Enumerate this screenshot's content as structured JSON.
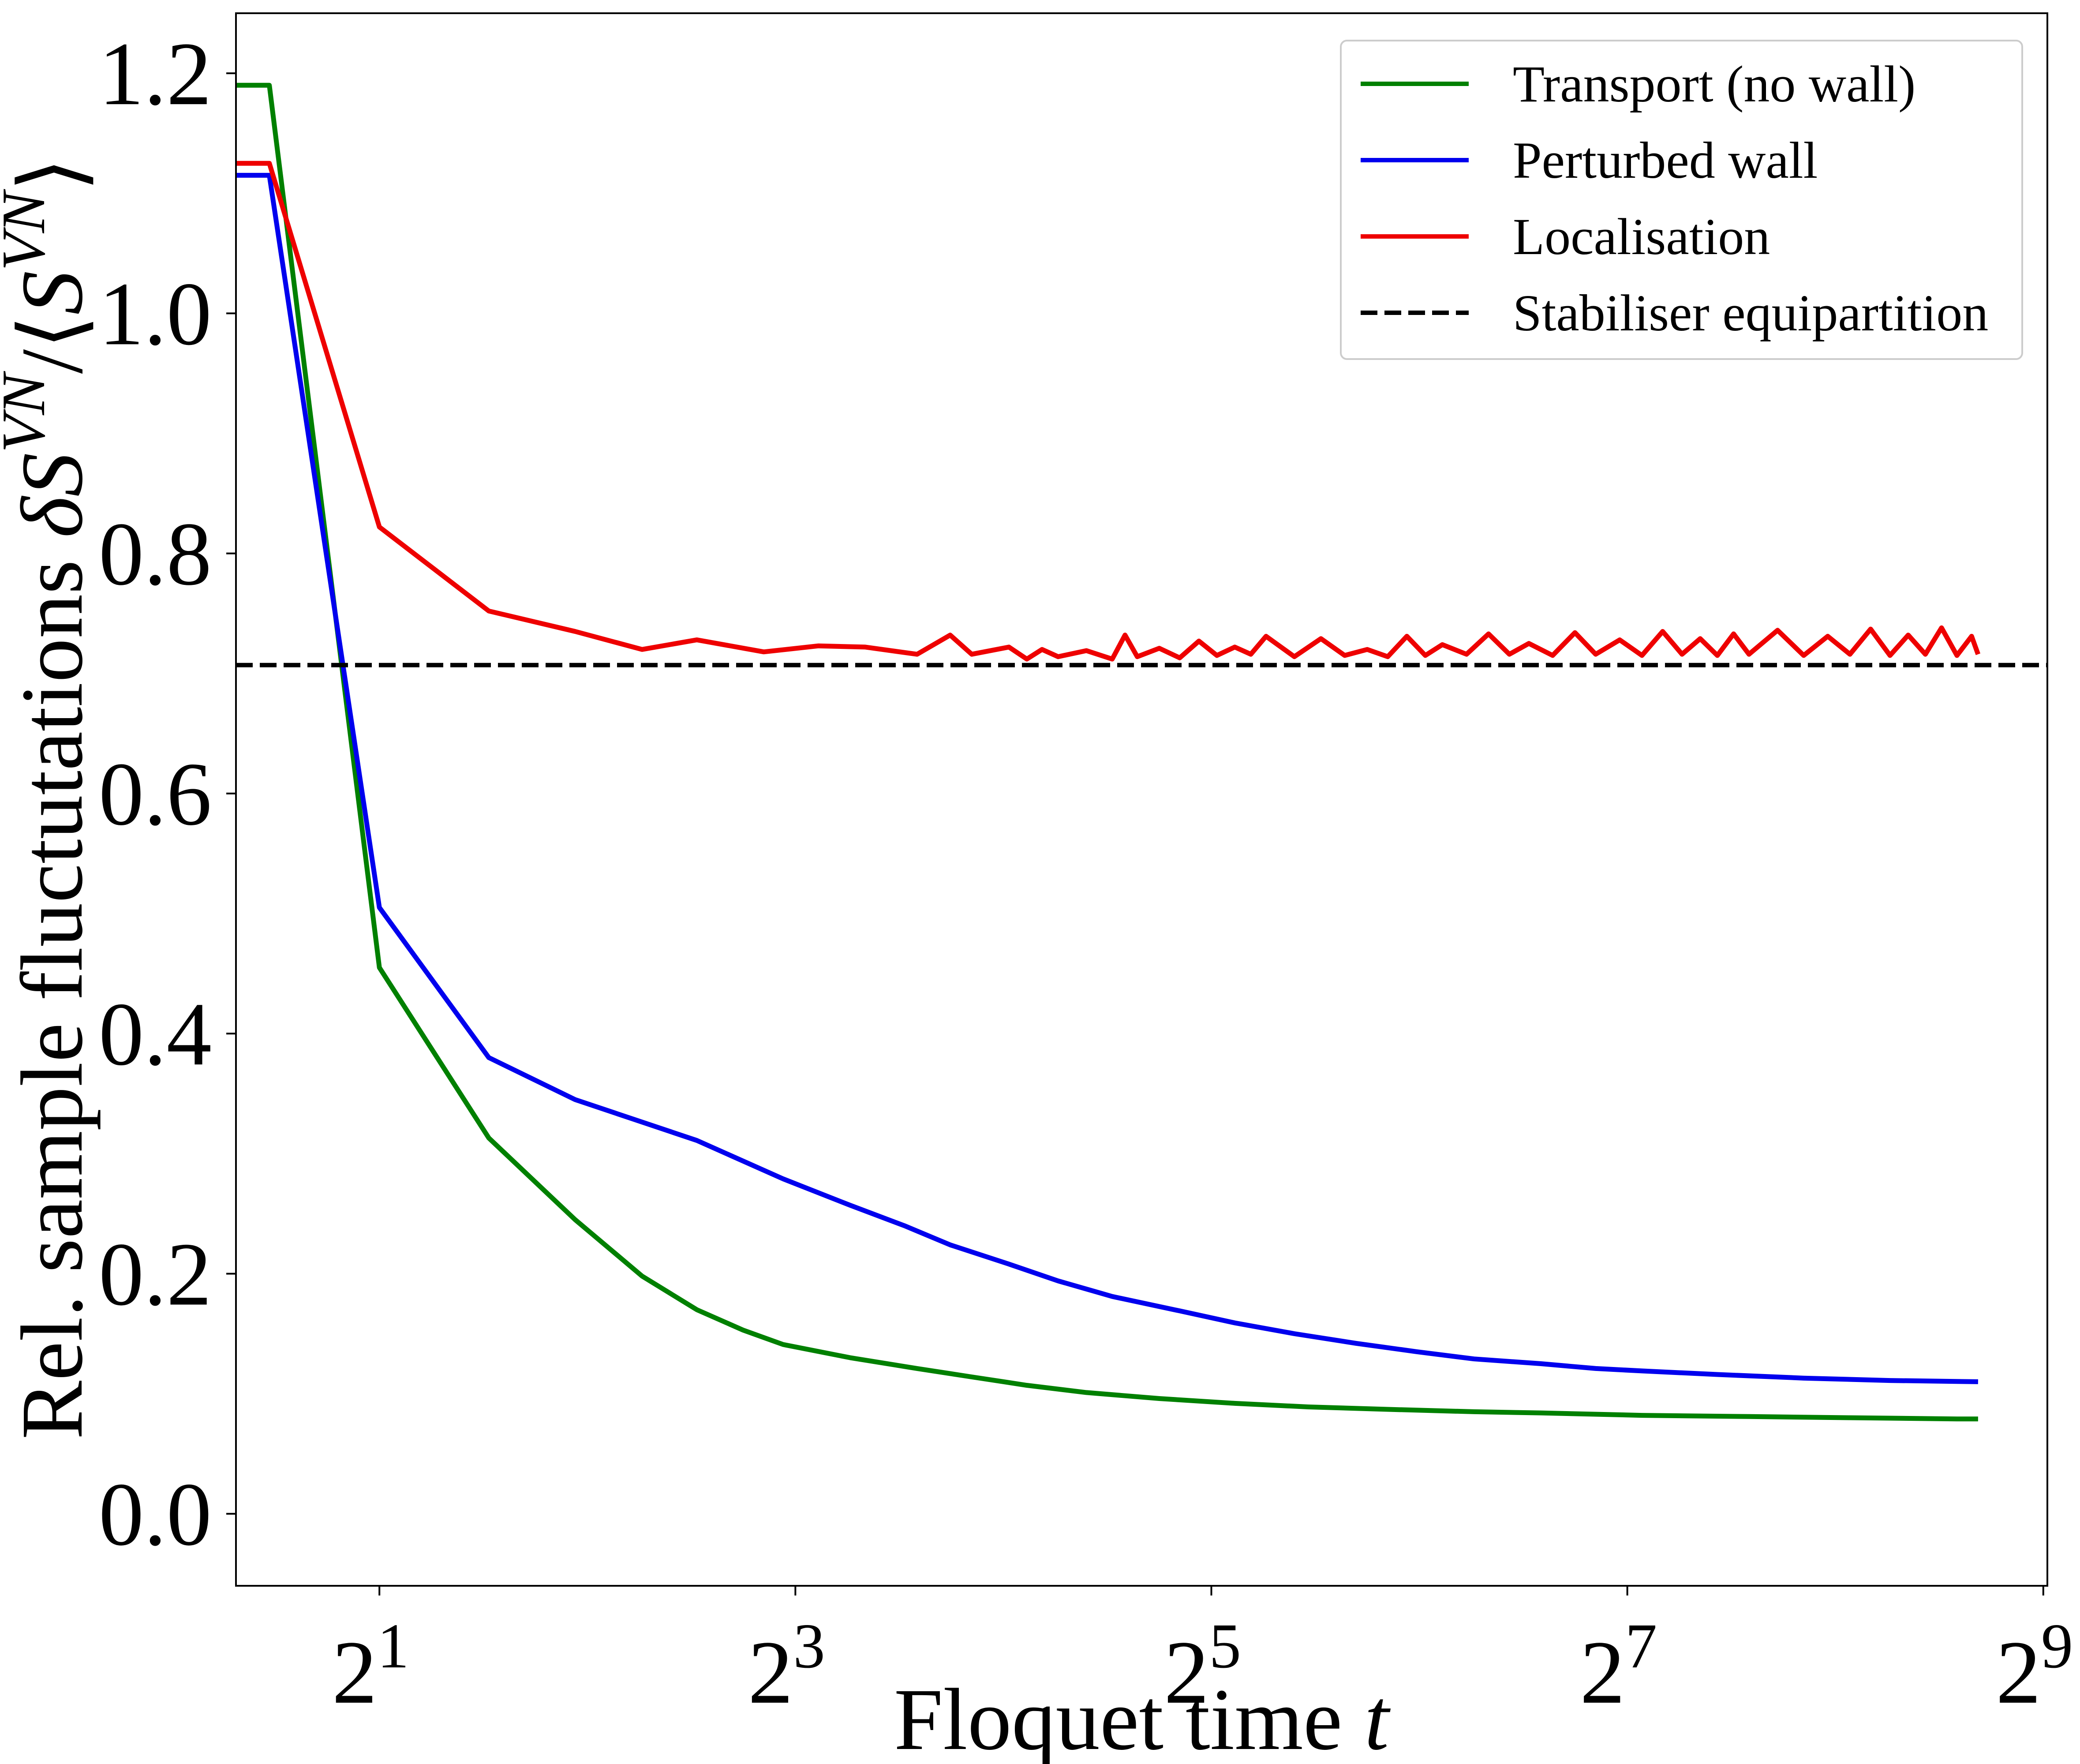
{
  "chart_data": {
    "type": "line",
    "title": "",
    "xlabel": "Floquet time t",
    "ylabel": "Rel. sample fluctutations δS^{VN}/⟨S^{VN}⟩",
    "xscale": "log2",
    "xlim": [
      1.24,
      519
    ],
    "ylim": [
      -0.06,
      1.25
    ],
    "xticks": [
      2,
      8,
      32,
      128,
      512
    ],
    "xtick_labels": [
      {
        "base": "2",
        "exp": "1"
      },
      {
        "base": "2",
        "exp": "3"
      },
      {
        "base": "2",
        "exp": "5"
      },
      {
        "base": "2",
        "exp": "7"
      },
      {
        "base": "2",
        "exp": "9"
      }
    ],
    "yticks": [
      0.0,
      0.2,
      0.4,
      0.6,
      0.8,
      1.0,
      1.2
    ],
    "ytick_labels": [
      "0.0",
      "0.2",
      "0.4",
      "0.6",
      "0.8",
      "1.0",
      "1.2"
    ],
    "legend_position": "top-right",
    "grid": false,
    "series": [
      {
        "name": "Transport (no wall)",
        "color": "#008000",
        "dash": "solid",
        "x": [
          1.0,
          1.386,
          2.0,
          2.88,
          3.84,
          4.8,
          5.76,
          6.72,
          7.68,
          9.6,
          12.0,
          14.4,
          17.3,
          21.1,
          26.9,
          34.6,
          44.2,
          57.6,
          76.8,
          96.0,
          134.4,
          192.0,
          268.8,
          384.0,
          412.0
        ],
        "y": [
          1.19,
          1.19,
          0.455,
          0.313,
          0.245,
          0.198,
          0.17,
          0.153,
          0.141,
          0.13,
          0.121,
          0.114,
          0.107,
          0.101,
          0.096,
          0.092,
          0.089,
          0.087,
          0.085,
          0.084,
          0.082,
          0.081,
          0.08,
          0.079,
          0.079
        ]
      },
      {
        "name": "Perturbed wall",
        "color": "#0000ee",
        "dash": "solid",
        "x": [
          1.0,
          1.386,
          2.0,
          2.88,
          3.84,
          5.76,
          7.68,
          9.6,
          11.5,
          13.4,
          16.3,
          19.2,
          23.0,
          28.8,
          34.6,
          42.2,
          51.8,
          63.4,
          76.8,
          96.0,
          115.2,
          134.4,
          172.8,
          230.4,
          307.2,
          412.0
        ],
        "y": [
          1.115,
          1.115,
          0.505,
          0.38,
          0.345,
          0.311,
          0.279,
          0.257,
          0.24,
          0.224,
          0.208,
          0.194,
          0.181,
          0.169,
          0.159,
          0.15,
          0.142,
          0.135,
          0.129,
          0.125,
          0.121,
          0.119,
          0.116,
          0.113,
          0.111,
          0.11
        ]
      },
      {
        "name": "Localisation",
        "color": "#ee0000",
        "dash": "solid",
        "x": [
          1.0,
          1.386,
          2.0,
          2.88,
          3.84,
          4.8,
          5.76,
          7.2,
          8.64,
          10.1,
          12.0,
          13.4,
          14.4,
          16.3,
          17.3,
          18.2,
          19.2,
          21.1,
          23.0,
          24.0,
          25.0,
          26.9,
          28.8,
          30.7,
          32.6,
          34.6,
          36.5,
          38.4,
          42.2,
          46.1,
          49.9,
          53.8,
          57.6,
          61.4,
          65.3,
          69.1,
          74.9,
          80.6,
          86.4,
          92.2,
          99.8,
          107.5,
          115.2,
          124.8,
          134.4,
          144.0,
          153.6,
          163.2,
          172.8,
          182.4,
          192.0,
          211.2,
          230.4,
          249.6,
          268.8,
          288.0,
          307.2,
          326.4,
          345.6,
          364.8,
          384.0,
          403.2,
          412.0
        ],
        "y": [
          1.125,
          1.125,
          0.822,
          0.752,
          0.735,
          0.72,
          0.728,
          0.718,
          0.723,
          0.722,
          0.716,
          0.732,
          0.716,
          0.722,
          0.712,
          0.72,
          0.714,
          0.719,
          0.712,
          0.732,
          0.714,
          0.721,
          0.713,
          0.727,
          0.715,
          0.722,
          0.716,
          0.731,
          0.714,
          0.729,
          0.715,
          0.72,
          0.714,
          0.731,
          0.715,
          0.724,
          0.716,
          0.733,
          0.716,
          0.725,
          0.715,
          0.734,
          0.716,
          0.728,
          0.715,
          0.735,
          0.716,
          0.729,
          0.715,
          0.733,
          0.716,
          0.736,
          0.715,
          0.731,
          0.716,
          0.737,
          0.715,
          0.732,
          0.716,
          0.738,
          0.715,
          0.731,
          0.716
        ]
      },
      {
        "name": "Stabiliser equipartition",
        "color": "#000000",
        "dash": "dashed",
        "x": [
          1.24,
          519
        ],
        "y": [
          0.707,
          0.707
        ]
      }
    ]
  }
}
